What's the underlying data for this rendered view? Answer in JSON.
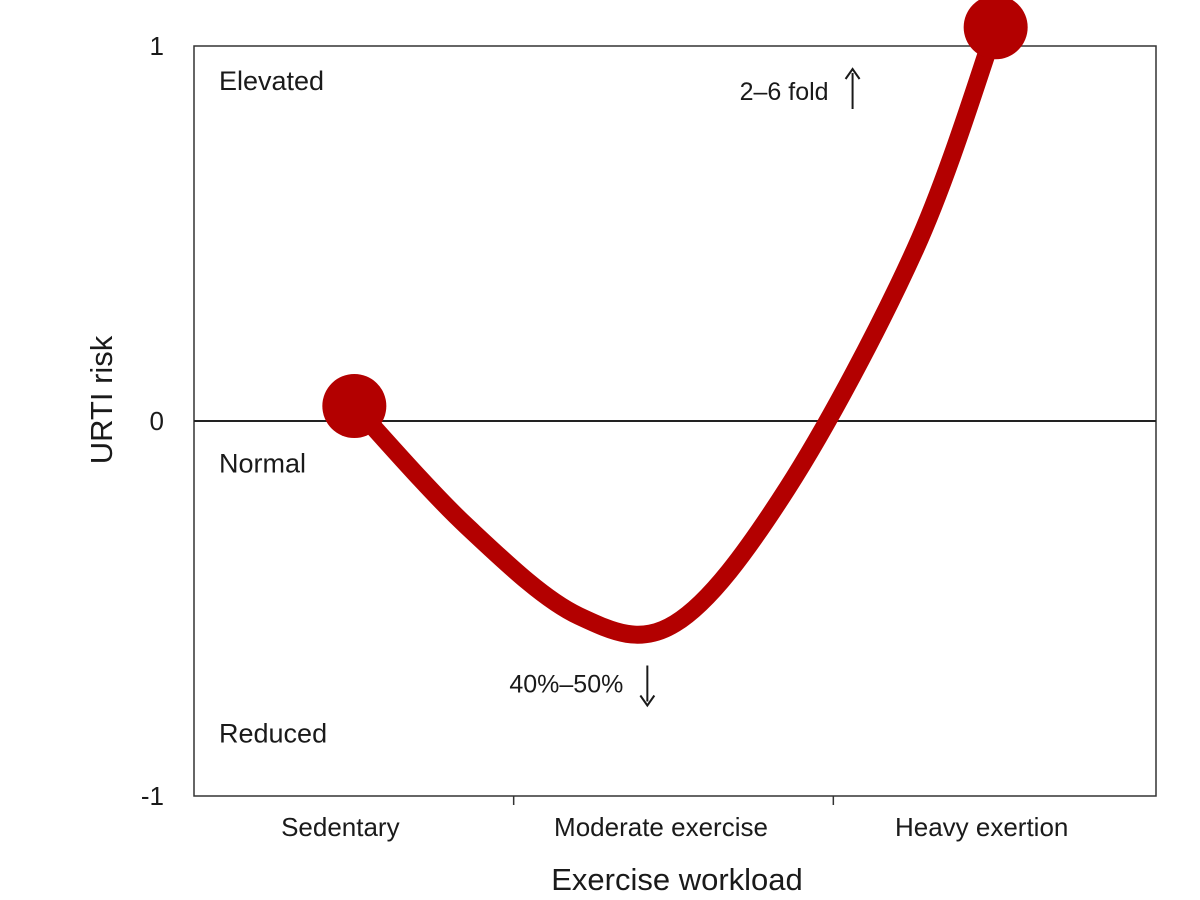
{
  "chart_data": {
    "type": "line",
    "title": "",
    "xlabel": "Exercise workload",
    "ylabel": "URTI risk",
    "categories": [
      "Sedentary",
      "Moderate exercise",
      "Heavy exertion"
    ],
    "xlim": [
      0,
      3
    ],
    "ylim": [
      -1,
      1
    ],
    "y_ticks": [
      {
        "value": 1,
        "label": "1"
      },
      {
        "value": 0,
        "label": "0"
      },
      {
        "value": -1,
        "label": "-1"
      }
    ],
    "reference_line_y": 0,
    "grid": false,
    "legend": "none",
    "series": [
      {
        "color": "#b30000",
        "x": [
          0.5,
          0.85,
          1.2,
          1.5,
          1.85,
          2.25,
          2.5
        ],
        "y": [
          0.04,
          -0.28,
          -0.52,
          -0.54,
          -0.18,
          0.46,
          1.05
        ],
        "endpoints_marked": true
      }
    ],
    "zone_labels": [
      {
        "text": "Elevated",
        "y": 0.91
      },
      {
        "text": "Normal",
        "y": -0.11
      },
      {
        "text": "Reduced",
        "y": -0.83
      }
    ],
    "annotations": [
      {
        "text": "2–6 fold",
        "arrow": "up",
        "x": 2.06,
        "y": 0.88
      },
      {
        "text": "40%–50%",
        "arrow": "down",
        "x": 1.42,
        "y": -0.7
      }
    ]
  }
}
